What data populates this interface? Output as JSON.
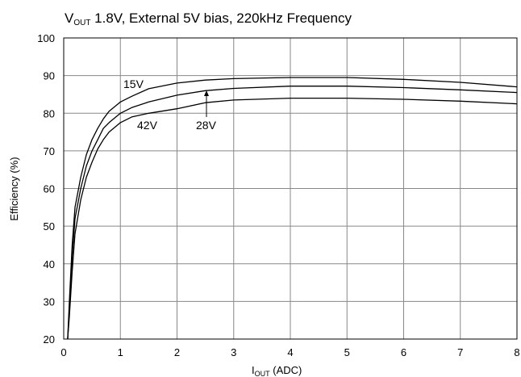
{
  "chart_data": {
    "type": "line",
    "title": {
      "main": "V",
      "sub": "OUT",
      "rest": " 1.8V, External 5V bias, 220kHz Frequency"
    },
    "xlabel": {
      "main": "I",
      "sub": "OUT",
      "rest": "  (ADC)"
    },
    "ylabel": "Efficiency  (%)",
    "xlim": [
      0,
      8
    ],
    "ylim": [
      20,
      100
    ],
    "xticks": [
      "0",
      "1",
      "2",
      "3",
      "4",
      "5",
      "6",
      "7",
      "8"
    ],
    "yticks": [
      "20",
      "30",
      "40",
      "50",
      "60",
      "70",
      "80",
      "90",
      "100"
    ],
    "grid": true,
    "series": [
      {
        "name": "15V",
        "x": [
          0.07,
          0.1,
          0.15,
          0.2,
          0.3,
          0.4,
          0.5,
          0.6,
          0.7,
          0.8,
          1.0,
          1.2,
          1.5,
          2.0,
          2.5,
          3.0,
          4.0,
          5.0,
          6.0,
          7.0,
          8.0
        ],
        "y": [
          20,
          30,
          45,
          55,
          63,
          69,
          73,
          76,
          78.5,
          80.5,
          83,
          84.5,
          86.5,
          88,
          88.8,
          89.2,
          89.5,
          89.5,
          89,
          88.2,
          87
        ]
      },
      {
        "name": "28V",
        "x": [
          0.07,
          0.1,
          0.15,
          0.2,
          0.3,
          0.4,
          0.5,
          0.6,
          0.7,
          0.8,
          1.0,
          1.2,
          1.5,
          2.0,
          2.5,
          3.0,
          4.0,
          5.0,
          6.0,
          7.0,
          8.0
        ],
        "y": [
          20,
          28,
          42,
          52,
          60,
          66,
          70,
          73,
          76,
          77.5,
          80,
          81.5,
          83,
          84.8,
          86,
          86.6,
          87.2,
          87.2,
          86.8,
          86.2,
          85.5
        ]
      },
      {
        "name": "42V",
        "x": [
          0.07,
          0.1,
          0.15,
          0.2,
          0.3,
          0.4,
          0.5,
          0.6,
          0.7,
          0.8,
          1.0,
          1.2,
          1.5,
          2.0,
          2.5,
          3.0,
          4.0,
          5.0,
          6.0,
          7.0,
          8.0
        ],
        "y": [
          20,
          26,
          38,
          48,
          57,
          63,
          67,
          70.5,
          73,
          75,
          77.5,
          79,
          80,
          81.2,
          82.8,
          83.5,
          84,
          84,
          83.7,
          83.2,
          82.5
        ]
      }
    ],
    "annotations": [
      "15V",
      "42V",
      "28V"
    ]
  }
}
